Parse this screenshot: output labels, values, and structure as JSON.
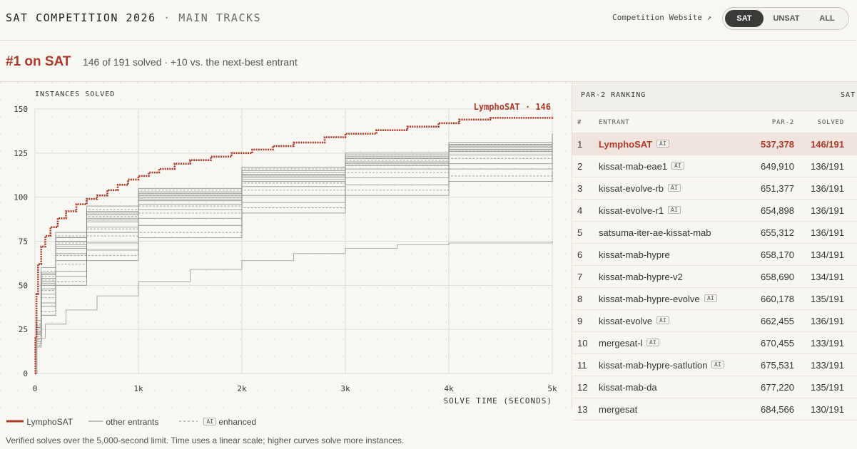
{
  "header": {
    "title": "SAT COMPETITION 2026",
    "separator": "·",
    "subtitle": "MAIN TRACKS",
    "link_label": "Competition Website ↗",
    "tabs": [
      {
        "label": "SAT",
        "active": true
      },
      {
        "label": "UNSAT",
        "active": false
      },
      {
        "label": "ALL",
        "active": false
      }
    ]
  },
  "headline": {
    "rank": "#1 on SAT",
    "summary": "146 of 191 solved · +10 vs. the next-best entrant"
  },
  "ranking": {
    "title": "PAR-2 RANKING",
    "track": "SAT",
    "columns": {
      "num": "#",
      "entrant": "ENTRANT",
      "par2": "PAR-2",
      "solved": "SOLVED"
    },
    "ai_badge": "AI",
    "rows": [
      {
        "rank": "1",
        "name": "LymphoSAT",
        "ai": true,
        "par2": "537,378",
        "solved": "146/191"
      },
      {
        "rank": "2",
        "name": "kissat-mab-eae1",
        "ai": true,
        "par2": "649,910",
        "solved": "136/191"
      },
      {
        "rank": "3",
        "name": "kissat-evolve-rb",
        "ai": true,
        "par2": "651,377",
        "solved": "136/191"
      },
      {
        "rank": "4",
        "name": "kissat-evolve-r1",
        "ai": true,
        "par2": "654,898",
        "solved": "136/191"
      },
      {
        "rank": "5",
        "name": "satsuma-iter-ae-kissat-mab",
        "ai": false,
        "par2": "655,312",
        "solved": "136/191"
      },
      {
        "rank": "6",
        "name": "kissat-mab-hypre",
        "ai": false,
        "par2": "658,170",
        "solved": "134/191"
      },
      {
        "rank": "7",
        "name": "kissat-mab-hypre-v2",
        "ai": false,
        "par2": "658,690",
        "solved": "134/191"
      },
      {
        "rank": "8",
        "name": "kissat-mab-hypre-evolve",
        "ai": true,
        "par2": "660,178",
        "solved": "135/191"
      },
      {
        "rank": "9",
        "name": "kissat-evolve",
        "ai": true,
        "par2": "662,455",
        "solved": "136/191"
      },
      {
        "rank": "10",
        "name": "mergesat-l",
        "ai": true,
        "par2": "670,455",
        "solved": "133/191"
      },
      {
        "rank": "11",
        "name": "kissat-mab-hypre-satlution",
        "ai": true,
        "par2": "675,531",
        "solved": "133/191"
      },
      {
        "rank": "12",
        "name": "kissat-mab-da",
        "ai": false,
        "par2": "677,220",
        "solved": "135/191"
      },
      {
        "rank": "13",
        "name": "mergesat",
        "ai": false,
        "par2": "684,566",
        "solved": "130/191"
      }
    ]
  },
  "legend": {
    "highlight": "LymphoSAT",
    "others": "other entrants",
    "enhanced_badge": "AI",
    "enhanced": "enhanced"
  },
  "footnote": "Verified solves over the 5,000-second limit. Time uses a linear scale; higher curves solve more instances.",
  "colors": {
    "highlight": "#a93a2c",
    "others": "#9a9a96",
    "text": "#2a2a2a",
    "grid": "#dcdbd4"
  },
  "chart_data": {
    "type": "line",
    "ylabel": "INSTANCES SOLVED",
    "xlabel": "SOLVE TIME (SECONDS)",
    "xlim": [
      0,
      5000
    ],
    "ylim": [
      0,
      150
    ],
    "x_ticks": [
      0,
      1000,
      2000,
      3000,
      4000,
      5000
    ],
    "x_tick_labels": [
      "0",
      "1k",
      "2k",
      "3k",
      "4k",
      "5k"
    ],
    "y_ticks": [
      0,
      25,
      50,
      75,
      100,
      125,
      150
    ],
    "grid": true,
    "highlight_series": {
      "name": "LymphoSAT",
      "label": "LymphoSAT · 146",
      "points": [
        [
          0,
          0
        ],
        [
          5,
          20
        ],
        [
          15,
          45
        ],
        [
          30,
          62
        ],
        [
          60,
          72
        ],
        [
          100,
          78
        ],
        [
          150,
          83
        ],
        [
          220,
          88
        ],
        [
          300,
          92
        ],
        [
          400,
          96
        ],
        [
          500,
          99
        ],
        [
          600,
          101
        ],
        [
          700,
          104
        ],
        [
          800,
          107
        ],
        [
          900,
          110
        ],
        [
          1000,
          112
        ],
        [
          1100,
          114
        ],
        [
          1200,
          116
        ],
        [
          1350,
          119
        ],
        [
          1500,
          121
        ],
        [
          1700,
          123
        ],
        [
          1900,
          125
        ],
        [
          2100,
          127
        ],
        [
          2300,
          129
        ],
        [
          2500,
          131
        ],
        [
          2800,
          134
        ],
        [
          3000,
          136
        ],
        [
          3300,
          138
        ],
        [
          3600,
          140
        ],
        [
          3900,
          142
        ],
        [
          4100,
          144
        ],
        [
          4400,
          145
        ],
        [
          5000,
          146
        ]
      ]
    },
    "series": [
      {
        "points": [
          [
            0,
            0
          ],
          [
            10,
            30
          ],
          [
            60,
            60
          ],
          [
            200,
            80
          ],
          [
            500,
            95
          ],
          [
            1000,
            105
          ],
          [
            2000,
            117
          ],
          [
            3000,
            125
          ],
          [
            4000,
            131
          ],
          [
            5000,
            136
          ]
        ]
      },
      {
        "points": [
          [
            0,
            0
          ],
          [
            10,
            28
          ],
          [
            60,
            58
          ],
          [
            200,
            78
          ],
          [
            500,
            93
          ],
          [
            1000,
            104
          ],
          [
            2000,
            116
          ],
          [
            3000,
            124
          ],
          [
            4000,
            130
          ],
          [
            5000,
            136
          ]
        ]
      },
      {
        "points": [
          [
            0,
            0
          ],
          [
            10,
            26
          ],
          [
            60,
            56
          ],
          [
            200,
            77
          ],
          [
            500,
            92
          ],
          [
            1000,
            103
          ],
          [
            2000,
            115
          ],
          [
            3000,
            124
          ],
          [
            4000,
            130
          ],
          [
            5000,
            136
          ]
        ]
      },
      {
        "points": [
          [
            0,
            0
          ],
          [
            10,
            27
          ],
          [
            60,
            57
          ],
          [
            200,
            77
          ],
          [
            500,
            91
          ],
          [
            1000,
            102
          ],
          [
            2000,
            114
          ],
          [
            3000,
            123
          ],
          [
            4000,
            129
          ],
          [
            5000,
            136
          ]
        ]
      },
      {
        "points": [
          [
            0,
            0
          ],
          [
            10,
            25
          ],
          [
            60,
            55
          ],
          [
            200,
            75
          ],
          [
            500,
            90
          ],
          [
            1000,
            101
          ],
          [
            2000,
            113
          ],
          [
            3000,
            122
          ],
          [
            4000,
            129
          ],
          [
            5000,
            136
          ]
        ]
      },
      {
        "points": [
          [
            0,
            0
          ],
          [
            10,
            24
          ],
          [
            60,
            52
          ],
          [
            200,
            73
          ],
          [
            500,
            88
          ],
          [
            1000,
            100
          ],
          [
            2000,
            112
          ],
          [
            3000,
            120
          ],
          [
            4000,
            127
          ],
          [
            5000,
            134
          ]
        ]
      },
      {
        "points": [
          [
            0,
            0
          ],
          [
            10,
            23
          ],
          [
            60,
            51
          ],
          [
            200,
            72
          ],
          [
            500,
            87
          ],
          [
            1000,
            99
          ],
          [
            2000,
            111
          ],
          [
            3000,
            120
          ],
          [
            4000,
            127
          ],
          [
            5000,
            134
          ]
        ]
      },
      {
        "points": [
          [
            0,
            0
          ],
          [
            10,
            24
          ],
          [
            60,
            53
          ],
          [
            200,
            74
          ],
          [
            500,
            89
          ],
          [
            1000,
            100
          ],
          [
            2000,
            112
          ],
          [
            3000,
            121
          ],
          [
            4000,
            128
          ],
          [
            5000,
            135
          ]
        ]
      },
      {
        "points": [
          [
            0,
            0
          ],
          [
            10,
            26
          ],
          [
            60,
            54
          ],
          [
            200,
            75
          ],
          [
            500,
            90
          ],
          [
            1000,
            101
          ],
          [
            2000,
            113
          ],
          [
            3000,
            122
          ],
          [
            4000,
            129
          ],
          [
            5000,
            136
          ]
        ]
      },
      {
        "points": [
          [
            0,
            0
          ],
          [
            10,
            22
          ],
          [
            60,
            48
          ],
          [
            200,
            68
          ],
          [
            500,
            83
          ],
          [
            1000,
            96
          ],
          [
            2000,
            109
          ],
          [
            3000,
            118
          ],
          [
            4000,
            126
          ],
          [
            5000,
            133
          ]
        ]
      },
      {
        "points": [
          [
            0,
            0
          ],
          [
            10,
            21
          ],
          [
            60,
            47
          ],
          [
            200,
            67
          ],
          [
            500,
            82
          ],
          [
            1000,
            95
          ],
          [
            2000,
            108
          ],
          [
            3000,
            118
          ],
          [
            4000,
            126
          ],
          [
            5000,
            133
          ]
        ]
      },
      {
        "points": [
          [
            0,
            0
          ],
          [
            10,
            23
          ],
          [
            60,
            50
          ],
          [
            200,
            71
          ],
          [
            500,
            86
          ],
          [
            1000,
            98
          ],
          [
            2000,
            110
          ],
          [
            3000,
            119
          ],
          [
            4000,
            128
          ],
          [
            5000,
            135
          ]
        ]
      },
      {
        "points": [
          [
            0,
            0
          ],
          [
            10,
            20
          ],
          [
            60,
            45
          ],
          [
            200,
            64
          ],
          [
            500,
            80
          ],
          [
            1000,
            93
          ],
          [
            2000,
            106
          ],
          [
            3000,
            116
          ],
          [
            4000,
            124
          ],
          [
            5000,
            130
          ]
        ]
      },
      {
        "points": [
          [
            0,
            0
          ],
          [
            10,
            19
          ],
          [
            60,
            43
          ],
          [
            200,
            62
          ],
          [
            500,
            78
          ],
          [
            1000,
            91
          ],
          [
            2000,
            104
          ],
          [
            3000,
            114
          ],
          [
            4000,
            122
          ],
          [
            5000,
            128
          ]
        ]
      },
      {
        "points": [
          [
            0,
            0
          ],
          [
            10,
            18
          ],
          [
            60,
            40
          ],
          [
            200,
            58
          ],
          [
            500,
            74
          ],
          [
            1000,
            88
          ],
          [
            2000,
            101
          ],
          [
            3000,
            111
          ],
          [
            4000,
            119
          ],
          [
            5000,
            126
          ]
        ]
      },
      {
        "points": [
          [
            0,
            0
          ],
          [
            10,
            17
          ],
          [
            60,
            38
          ],
          [
            200,
            55
          ],
          [
            500,
            70
          ],
          [
            1000,
            84
          ],
          [
            2000,
            97
          ],
          [
            3000,
            107
          ],
          [
            4000,
            116
          ],
          [
            5000,
            123
          ]
        ]
      },
      {
        "points": [
          [
            0,
            0
          ],
          [
            10,
            16
          ],
          [
            60,
            35
          ],
          [
            200,
            52
          ],
          [
            500,
            67
          ],
          [
            1000,
            80
          ],
          [
            2000,
            94
          ],
          [
            3000,
            104
          ],
          [
            4000,
            112
          ],
          [
            5000,
            118
          ]
        ]
      },
      {
        "points": [
          [
            0,
            0
          ],
          [
            10,
            15
          ],
          [
            60,
            33
          ],
          [
            200,
            50
          ],
          [
            500,
            64
          ],
          [
            1000,
            77
          ],
          [
            2000,
            91
          ],
          [
            3000,
            101
          ],
          [
            4000,
            109
          ],
          [
            5000,
            115
          ]
        ]
      },
      {
        "points": [
          [
            0,
            0
          ],
          [
            20,
            20
          ],
          [
            100,
            28
          ],
          [
            300,
            36
          ],
          [
            600,
            44
          ],
          [
            1000,
            52
          ],
          [
            1500,
            59
          ],
          [
            2000,
            64
          ],
          [
            2500,
            68
          ],
          [
            3000,
            71
          ],
          [
            3500,
            73
          ],
          [
            4000,
            74
          ],
          [
            5000,
            75
          ]
        ]
      }
    ]
  }
}
